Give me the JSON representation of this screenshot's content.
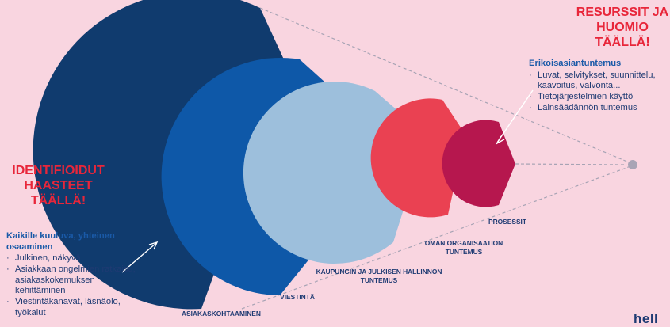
{
  "callout_resources": {
    "lines": [
      "RESURSSIT JA",
      "HUOMIO",
      "TÄÄLLÄ!"
    ],
    "color": "#e8263a"
  },
  "callout_challenges": {
    "lines": [
      "IDENTIFIOIDUT",
      "HAASTEET",
      "TÄÄLLÄ!"
    ],
    "color": "#e8263a"
  },
  "expertise": {
    "heading": "Erikoisasiantuntemus",
    "items": [
      "Luvat, selvitykset, suunnittelu, kaavoitus, valvonta...",
      "Tietojärjestelmien käyttö",
      "Lainsäädännön tuntemus"
    ]
  },
  "common_skills": {
    "heading": "Kaikille kuuluva, yhteinen osaaminen",
    "items": [
      "Julkinen, näkyvä",
      "Asiakkaan ongelmien ratkaisu, asiakaskokemuksen kehittäminen",
      "Viestintäkanavat, läsnäolo, työkalut"
    ]
  },
  "levels": [
    {
      "label": "ASIAKASKOHTAAMINEN",
      "color": "#103b6e"
    },
    {
      "label": "VIESTINTÄ",
      "color": "#0e58a8"
    },
    {
      "label": "KAUPUNGIN JA JULKISEN HALLINNON TUNTEMUS",
      "color": "#9dbfdc"
    },
    {
      "label": "OMAN ORGANISAATION TUNTEMUS",
      "color": "#ea4152"
    },
    {
      "label": "PROSESSIT",
      "color": "#b6174e"
    }
  ],
  "logo_text": "hell"
}
